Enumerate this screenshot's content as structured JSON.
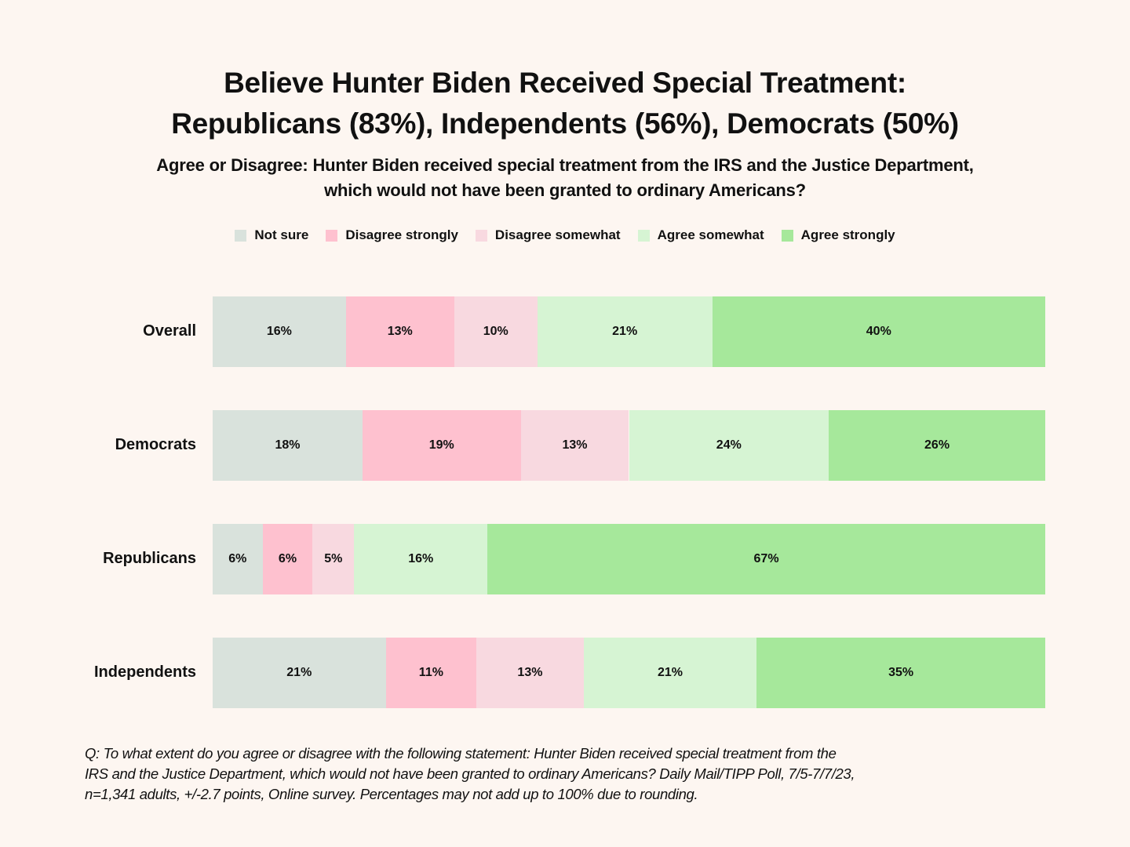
{
  "chart_data": {
    "type": "bar",
    "orientation": "horizontal",
    "stacked": true,
    "title": [
      "Believe Hunter Biden Received Special Treatment:",
      "Republicans (83%), Independents (56%), Democrats (50%)"
    ],
    "subtitle": [
      "Agree or Disagree: Hunter Biden received special treatment from the IRS and the Justice Department,",
      "which would not have been granted to ordinary Americans?"
    ],
    "legend_placement": "top",
    "grid": false,
    "categories": [
      "Overall",
      "Democrats",
      "Republicans",
      "Independents"
    ],
    "series": [
      {
        "name": "Not sure",
        "color": "#d9e2dc",
        "values": [
          16,
          18,
          6,
          21
        ]
      },
      {
        "name": "Disagree strongly",
        "color": "#fec1cf",
        "values": [
          13,
          19,
          6,
          11
        ]
      },
      {
        "name": "Disagree somewhat",
        "color": "#f8d9e0",
        "values": [
          10,
          13,
          5,
          13
        ]
      },
      {
        "name": "Agree somewhat",
        "color": "#d6f4d3",
        "values": [
          21,
          24,
          16,
          21
        ]
      },
      {
        "name": "Agree strongly",
        "color": "#a6e89b",
        "values": [
          40,
          26,
          67,
          35
        ]
      }
    ],
    "value_suffix": "%",
    "footnote": [
      "Q: To what extent do you agree or disagree with the following statement: Hunter Biden received special treatment from the",
      "IRS and the Justice Department, which would not have been granted to ordinary Americans? Daily Mail/TIPP Poll, 7/5-7/7/23,",
      "n=1,341 adults, +/-2.7 points, Online survey.  Percentages may not add up to 100% due to rounding."
    ]
  },
  "colors": {
    "background": "#fdf6f1"
  }
}
